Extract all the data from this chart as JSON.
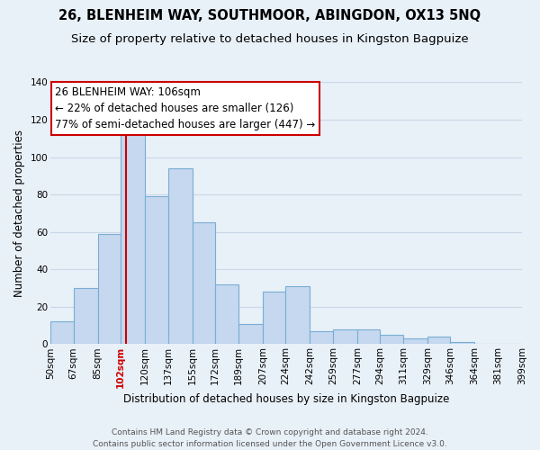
{
  "title": "26, BLENHEIM WAY, SOUTHMOOR, ABINGDON, OX13 5NQ",
  "subtitle": "Size of property relative to detached houses in Kingston Bagpuize",
  "xlabel": "Distribution of detached houses by size in Kingston Bagpuize",
  "ylabel": "Number of detached properties",
  "bar_left_edges": [
    50,
    67,
    85,
    102,
    120,
    137,
    155,
    172,
    189,
    207,
    224,
    242,
    259,
    277,
    294,
    311,
    329,
    346,
    364,
    381
  ],
  "bar_widths": [
    17,
    18,
    17,
    18,
    17,
    18,
    17,
    17,
    18,
    17,
    18,
    17,
    18,
    17,
    17,
    18,
    17,
    18,
    17,
    18
  ],
  "bar_heights": [
    12,
    30,
    59,
    113,
    79,
    94,
    65,
    32,
    11,
    28,
    31,
    7,
    8,
    8,
    5,
    3,
    4,
    1,
    0,
    0
  ],
  "bar_color": "#c5d8ef",
  "bar_edgecolor": "#7aadd4",
  "property_line_x": 106,
  "property_line_color": "#cc0000",
  "annotation_text": "26 BLENHEIM WAY: 106sqm\n← 22% of detached houses are smaller (126)\n77% of semi-detached houses are larger (447) →",
  "annotation_box_edgecolor": "#cc0000",
  "annotation_box_facecolor": "#ffffff",
  "x_tick_labels": [
    "50sqm",
    "67sqm",
    "85sqm",
    "102sqm",
    "120sqm",
    "137sqm",
    "155sqm",
    "172sqm",
    "189sqm",
    "207sqm",
    "224sqm",
    "242sqm",
    "259sqm",
    "277sqm",
    "294sqm",
    "311sqm",
    "329sqm",
    "346sqm",
    "364sqm",
    "381sqm",
    "399sqm"
  ],
  "x_tick_positions": [
    50,
    67,
    85,
    102,
    120,
    137,
    155,
    172,
    189,
    207,
    224,
    242,
    259,
    277,
    294,
    311,
    329,
    346,
    364,
    381,
    399
  ],
  "ylim": [
    0,
    140
  ],
  "yticks": [
    0,
    20,
    40,
    60,
    80,
    100,
    120,
    140
  ],
  "grid_color": "#c8d8e8",
  "background_color": "#e8f0f8",
  "footer_text": "Contains HM Land Registry data © Crown copyright and database right 2024.\nContains public sector information licensed under the Open Government Licence v3.0.",
  "title_fontsize": 10.5,
  "subtitle_fontsize": 9.5,
  "xlabel_fontsize": 8.5,
  "ylabel_fontsize": 8.5,
  "tick_fontsize": 7.5,
  "footer_fontsize": 6.5,
  "annotation_fontsize": 8.5,
  "highlighted_tick": "102sqm"
}
